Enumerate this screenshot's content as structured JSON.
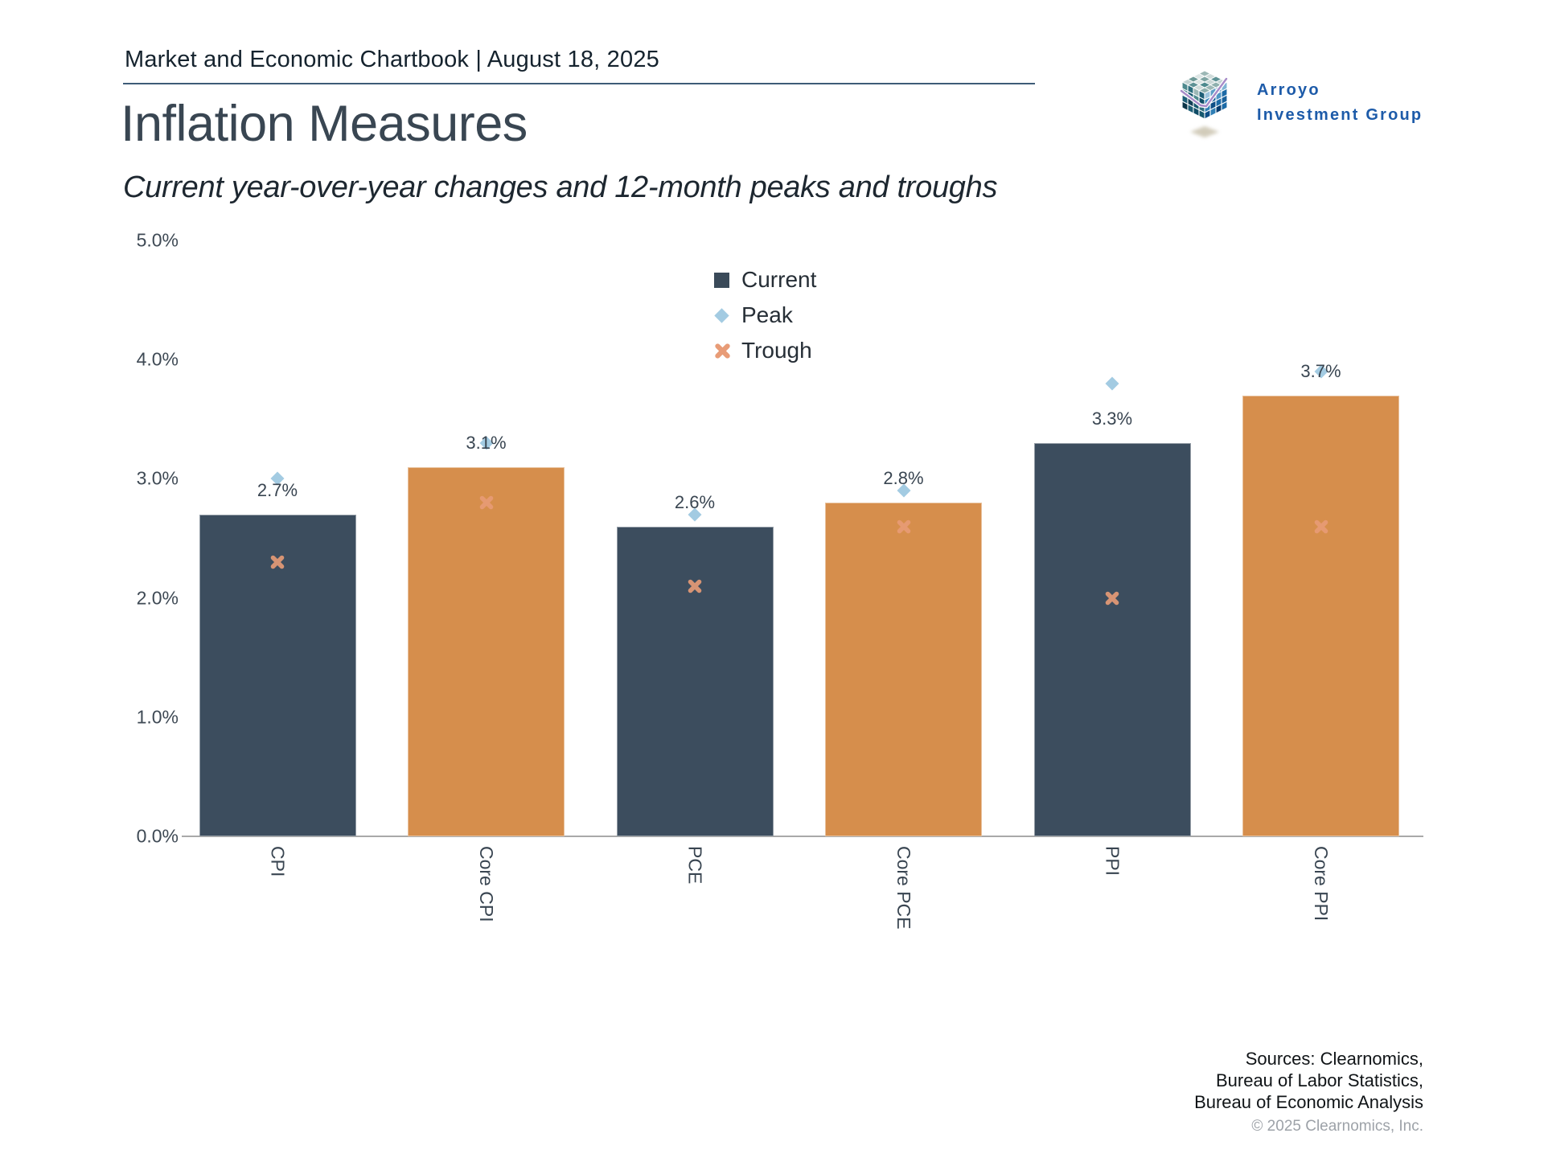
{
  "header": {
    "text": "Market and Economic Chartbook | August 18, 2025"
  },
  "brand": {
    "line1": "Arroyo",
    "line2": "Investment Group",
    "color": "#1d5ba9",
    "logo_icon": "cube-mosaic-chart-logo"
  },
  "chart_data": {
    "type": "bar",
    "title": "Inflation Measures",
    "subtitle": "Current year-over-year changes and 12-month peaks and troughs",
    "categories": [
      "CPI",
      "Core CPI",
      "PCE",
      "Core PCE",
      "PPI",
      "Core PPI"
    ],
    "series": [
      {
        "name": "Current",
        "type": "bar",
        "marker": "square",
        "values": [
          2.7,
          3.1,
          2.6,
          2.8,
          3.3,
          3.7
        ],
        "value_labels": [
          "2.7%",
          "3.1%",
          "2.6%",
          "2.8%",
          "3.3%",
          "3.7%"
        ],
        "bar_colors": [
          "#3c4d5e",
          "#d68e4c",
          "#3c4d5e",
          "#d68e4c",
          "#3c4d5e",
          "#d68e4c"
        ],
        "legend_color": "#3a4a59"
      },
      {
        "name": "Peak",
        "type": "scatter",
        "marker": "diamond",
        "color": "#a3cbe2",
        "values": [
          3.0,
          3.3,
          2.7,
          2.9,
          3.8,
          3.9
        ]
      },
      {
        "name": "Trough",
        "type": "scatter",
        "marker": "x",
        "color": "#e89c77",
        "values": [
          2.3,
          2.8,
          2.1,
          2.6,
          2.0,
          2.6
        ]
      }
    ],
    "ylim": [
      0,
      5
    ],
    "y_ticks": [
      {
        "label": "5.0%",
        "value": 5
      },
      {
        "label": "4.0%",
        "value": 4
      },
      {
        "label": "3.0%",
        "value": 3
      },
      {
        "label": "2.0%",
        "value": 2
      },
      {
        "label": "1.0%",
        "value": 1
      },
      {
        "label": "0.0%",
        "value": 0
      }
    ],
    "grid": false,
    "legend_position": "upper center",
    "xlabel": "",
    "ylabel": ""
  },
  "footer": {
    "lines": [
      "Sources: Clearnomics,",
      "Bureau of Labor Statistics,",
      "Bureau of Economic Analysis"
    ],
    "copyright": "© 2025 Clearnomics, Inc."
  }
}
